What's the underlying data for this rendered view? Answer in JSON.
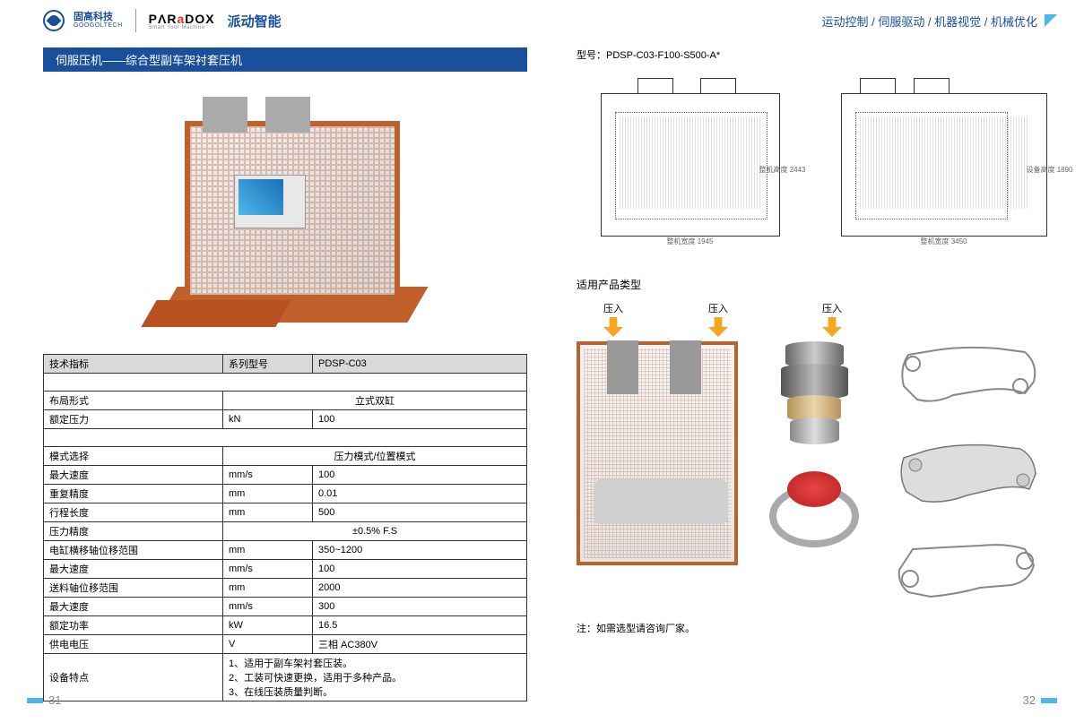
{
  "header": {
    "brand1_cn": "固高科技",
    "brand1_en": "GOOGOLTECH",
    "paradox_a": "PΛR",
    "paradox_b": "a",
    "paradox_c": "DOX",
    "paradox_sub": "Smart Your Machine",
    "brand2": "派动智能",
    "nav": "运动控制 / 伺服驱动 / 机器视觉 / 机械优化"
  },
  "section_title": "伺服压机——综合型副车架衬套压机",
  "model_label": "型号：PDSP-C03-F100-S500-A*",
  "spec_table": {
    "header": {
      "c1": "技术指标",
      "c2": "系列型号",
      "c3": "PDSP-C03"
    },
    "rows1": [
      {
        "c1": "布局形式",
        "c2": "",
        "c3": "立式双缸"
      },
      {
        "c1": "额定压力",
        "c2": "kN",
        "c3": "100"
      }
    ],
    "rows2": [
      {
        "c1": "模式选择",
        "c2": "",
        "c3": "压力模式/位置模式"
      },
      {
        "c1": "最大速度",
        "c2": "mm/s",
        "c3": "100"
      },
      {
        "c1": "重复精度",
        "c2": "mm",
        "c3": "0.01"
      },
      {
        "c1": "行程长度",
        "c2": "mm",
        "c3": "500"
      },
      {
        "c1": "压力精度",
        "c2": "",
        "c3": "±0.5% F.S"
      },
      {
        "c1": "电缸横移轴位移范围",
        "c2": "mm",
        "c3": "350~1200"
      },
      {
        "c1": "最大速度",
        "c2": "mm/s",
        "c3": "100"
      },
      {
        "c1": "送料轴位移范围",
        "c2": "mm",
        "c3": "2000"
      },
      {
        "c1": "最大速度",
        "c2": "mm/s",
        "c3": "300"
      },
      {
        "c1": "额定功率",
        "c2": "kW",
        "c3": "16.5"
      },
      {
        "c1": "供电电压",
        "c2": "V",
        "c3": "三相 AC380V"
      },
      {
        "c1": "设备特点",
        "c2": "",
        "c3": "1、适用于副车架衬套压装。\n2、工装可快速更换，适用于多种产品。\n3、在线压装质量判断。"
      }
    ]
  },
  "drawings": {
    "d1_bottom": "整机宽度 1945",
    "d2_bottom": "整机宽度 3450",
    "d_right1": "整机高度 2443",
    "d_right2": "设备高度 1890"
  },
  "applicable_title": "适用产品类型",
  "arrows": {
    "label": "压入"
  },
  "note": "注：如需选型请咨询厂家。",
  "page_left": "31",
  "page_right": "32",
  "colors": {
    "primary": "#1a4f9c",
    "accent": "#4db8e8",
    "machine": "#c0602a",
    "arrow": "#f5a623",
    "table_header_bg": "#d9d9d9",
    "table_border": "#333333"
  }
}
